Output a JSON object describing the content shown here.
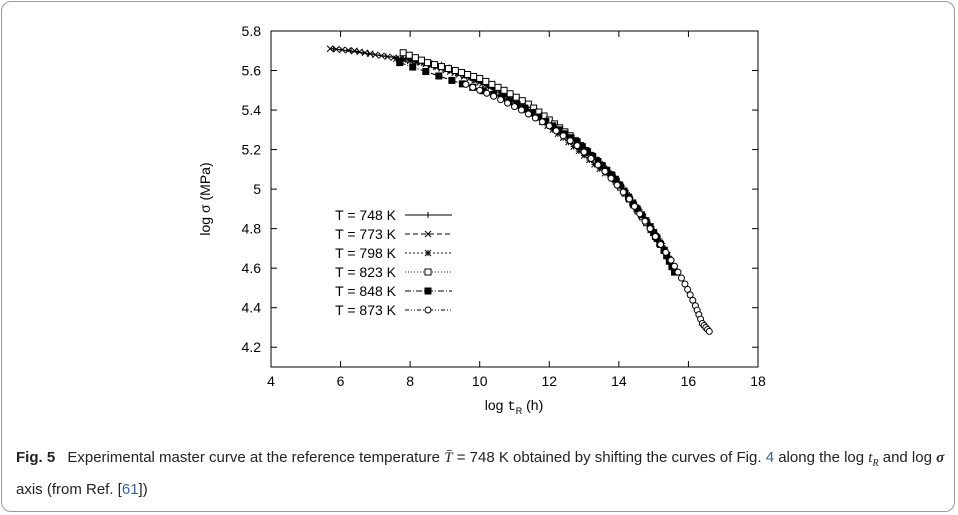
{
  "figure": {
    "caption_label": "Fig. 5",
    "caption_part1": "Experimental master curve at the reference temperature",
    "caption_temperature": "= 748 K",
    "caption_part2": "obtained by shifting the curves of",
    "caption_fig_prefix": "Fig.",
    "caption_fig_ref": "4",
    "caption_part3": "along the log",
    "caption_part4": "and log",
    "caption_part5": "axis (from Ref. [",
    "caption_ref": "61",
    "caption_part6": "])"
  },
  "chart_data": {
    "type": "scatter",
    "title": "",
    "xlabel": "log",
    "xlabel_var": "t",
    "xlabel_sub": "R",
    "xlabel_unit": "(h)",
    "ylabel": "log σ (MPa)",
    "xlim": [
      4,
      18
    ],
    "ylim": [
      4.1,
      5.8
    ],
    "xticks": [
      4,
      6,
      8,
      10,
      12,
      14,
      16,
      18
    ],
    "yticks": [
      4.2,
      4.4,
      4.6,
      4.8,
      5,
      5.2,
      5.4,
      5.6,
      5.8
    ],
    "grid": false,
    "legend_position": "left-center",
    "series": [
      {
        "name": "T = 748 K",
        "marker": "plus",
        "dash": "",
        "points": [
          [
            5.8,
            5.71
          ],
          [
            7.8,
            5.66
          ],
          [
            8.9,
            5.63
          ],
          [
            9.8,
            5.57
          ],
          [
            10.6,
            5.51
          ],
          [
            11.3,
            5.44
          ],
          [
            12,
            5.35
          ],
          [
            12.7,
            5.25
          ],
          [
            13.4,
            5.15
          ],
          [
            13.9,
            5.06
          ],
          [
            14.3,
            4.97
          ],
          [
            14.7,
            4.87
          ],
          [
            15.1,
            4.77
          ],
          [
            15.4,
            4.68
          ],
          [
            15.6,
            4.6
          ]
        ]
      },
      {
        "name": "T = 773 K",
        "marker": "x",
        "dash": "5,3",
        "points": [
          [
            5.7,
            5.71
          ],
          [
            6.4,
            5.7
          ],
          [
            7,
            5.68
          ],
          [
            7.7,
            5.66
          ],
          [
            8.3,
            5.64
          ],
          [
            8.9,
            5.61
          ],
          [
            9.4,
            5.58
          ],
          [
            10,
            5.54
          ],
          [
            10.6,
            5.49
          ],
          [
            11.2,
            5.42
          ],
          [
            11.8,
            5.34
          ]
        ]
      },
      {
        "name": "T = 798 K",
        "marker": "star",
        "dash": "2,2",
        "points": [
          [
            7.6,
            5.66
          ],
          [
            8.4,
            5.64
          ],
          [
            9.2,
            5.6
          ],
          [
            9.9,
            5.55
          ],
          [
            10.6,
            5.49
          ],
          [
            11.2,
            5.42
          ],
          [
            11.8,
            5.34
          ],
          [
            12.4,
            5.26
          ],
          [
            13,
            5.17
          ],
          [
            13.6,
            5.08
          ]
        ]
      },
      {
        "name": "T = 823 K",
        "marker": "square-open",
        "dash": "1,2",
        "points": [
          [
            7.8,
            5.69
          ],
          [
            8.5,
            5.64
          ],
          [
            9.3,
            5.6
          ],
          [
            10,
            5.56
          ],
          [
            10.7,
            5.5
          ],
          [
            11.4,
            5.43
          ],
          [
            12,
            5.35
          ],
          [
            12.6,
            5.27
          ],
          [
            13.2,
            5.17
          ],
          [
            13.8,
            5.07
          ],
          [
            14.3,
            4.95
          ],
          [
            14.8,
            4.83
          ],
          [
            15.3,
            4.69
          ]
        ]
      },
      {
        "name": "T = 848 K",
        "marker": "square-filled",
        "dash": "6,2,1,2",
        "points": [
          [
            7.7,
            5.64
          ],
          [
            9.2,
            5.55
          ],
          [
            10.4,
            5.48
          ],
          [
            11.3,
            5.41
          ],
          [
            12.1,
            5.32
          ],
          [
            12.8,
            5.24
          ],
          [
            13.4,
            5.14
          ],
          [
            13.9,
            5.05
          ],
          [
            14.4,
            4.93
          ],
          [
            14.9,
            4.81
          ],
          [
            15.3,
            4.69
          ],
          [
            15.6,
            4.58
          ]
        ]
      },
      {
        "name": "T = 873 K",
        "marker": "circle-open",
        "dash": "4,2,1,2,1,2",
        "points": [
          [
            9.6,
            5.53
          ],
          [
            10.4,
            5.47
          ],
          [
            11.2,
            5.4
          ],
          [
            12,
            5.32
          ],
          [
            12.8,
            5.22
          ],
          [
            13.6,
            5.09
          ],
          [
            14.3,
            4.95
          ],
          [
            14.9,
            4.8
          ],
          [
            15.5,
            4.64
          ],
          [
            15.9,
            4.52
          ],
          [
            16.2,
            4.41
          ],
          [
            16.4,
            4.32
          ],
          [
            16.6,
            4.28
          ]
        ]
      }
    ]
  }
}
